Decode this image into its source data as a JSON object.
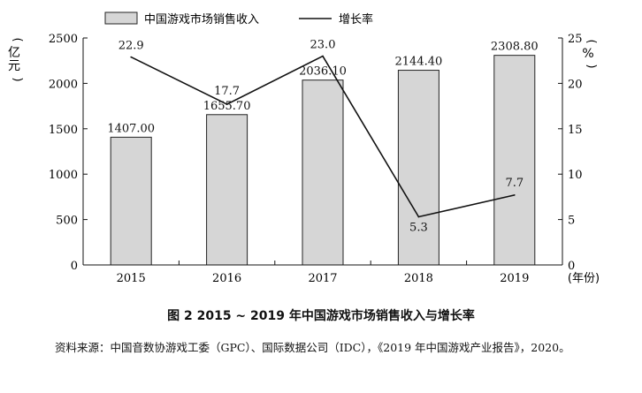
{
  "chart_data": {
    "type": "bar+line",
    "categories": [
      "2015",
      "2016",
      "2017",
      "2018",
      "2019"
    ],
    "series": [
      {
        "name": "中国游戏市场销售收入",
        "type": "bar",
        "axis": "left",
        "values": [
          1407.0,
          1655.7,
          2036.1,
          2144.4,
          2308.8
        ],
        "labels": [
          "1407.00",
          "1655.70",
          "2036.10",
          "2144.40",
          "2308.80"
        ]
      },
      {
        "name": "增长率",
        "type": "line",
        "axis": "right",
        "values": [
          22.9,
          17.7,
          23.0,
          5.3,
          7.7
        ],
        "labels": [
          "22.9",
          "17.7",
          "23.0",
          "5.3",
          "7.7"
        ]
      }
    ],
    "y_left": {
      "label": "亿元",
      "range": [
        0,
        2500
      ],
      "ticks": [
        "0",
        "500",
        "1000",
        "1500",
        "2000",
        "2500"
      ]
    },
    "y_right": {
      "label": "%",
      "range": [
        0,
        25
      ],
      "ticks": [
        "0",
        "5",
        "10",
        "15",
        "20",
        "25"
      ]
    },
    "xlabel": "年份",
    "legend_position": "top",
    "colors": {
      "bar_fill": "#d6d6d6",
      "bar_stroke": "#222222",
      "line": "#111111"
    }
  },
  "caption": "图 2   2015 ~ 2019 年中国游戏市场销售收入与增长率",
  "source": "资料来源：中国音数协游戏工委（GPC）、国际数据公司（IDC），《2019 年中国游戏产业报告》，2020。"
}
